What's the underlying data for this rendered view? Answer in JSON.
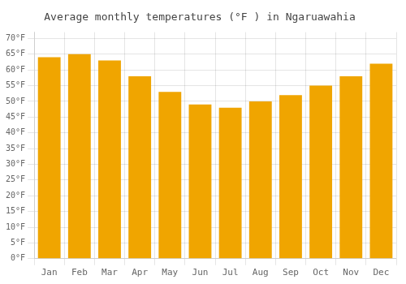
{
  "chart_data": {
    "type": "bar",
    "title": "Average monthly temperatures (°F ) in Ngaruawahia",
    "categories": [
      "Jan",
      "Feb",
      "Mar",
      "Apr",
      "May",
      "Jun",
      "Jul",
      "Aug",
      "Sep",
      "Oct",
      "Nov",
      "Dec"
    ],
    "values": [
      64,
      65,
      63,
      58,
      53,
      49,
      48,
      50,
      52,
      55,
      58,
      62
    ],
    "color": "#F0A500",
    "ylim": [
      0,
      72
    ],
    "yticks": [
      {
        "value": 0,
        "label": "0°F"
      },
      {
        "value": 5,
        "label": "5°F"
      },
      {
        "value": 10,
        "label": "10°F"
      },
      {
        "value": 15,
        "label": "15°F"
      },
      {
        "value": 20,
        "label": "20°F"
      },
      {
        "value": 25,
        "label": "25°F"
      },
      {
        "value": 30,
        "label": "30°F"
      },
      {
        "value": 35,
        "label": "35°F"
      },
      {
        "value": 40,
        "label": "40°F"
      },
      {
        "value": 45,
        "label": "45°F"
      },
      {
        "value": 50,
        "label": "50°F"
      },
      {
        "value": 55,
        "label": "55°F"
      },
      {
        "value": 60,
        "label": "60°F"
      },
      {
        "value": 65,
        "label": "65°F"
      },
      {
        "value": 70,
        "label": "70°F"
      }
    ],
    "grid": true
  }
}
